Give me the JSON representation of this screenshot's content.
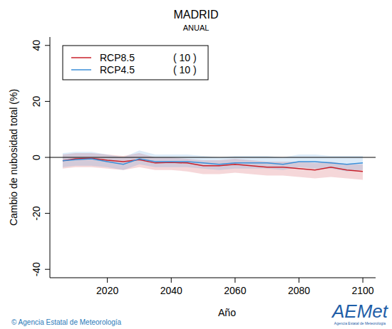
{
  "chart_data": {
    "type": "line",
    "title": "MADRID",
    "subtitle": "ANUAL",
    "x_label": "Año",
    "y_label": "Cambio de nubosidad total (%)",
    "x": [
      2006,
      2010,
      2015,
      2020,
      2025,
      2030,
      2035,
      2040,
      2045,
      2050,
      2055,
      2060,
      2065,
      2070,
      2075,
      2080,
      2085,
      2090,
      2095,
      2100
    ],
    "series": [
      {
        "name": "RCP8.5",
        "count_label": "( 10 )",
        "color": "#c8202a",
        "values": [
          -1.2,
          -0.5,
          -0.3,
          -1,
          -1.5,
          -0.8,
          -2,
          -1.8,
          -2,
          -3,
          -3,
          -2.5,
          -3,
          -3.5,
          -3.5,
          -4,
          -4.5,
          -3.5,
          -4.5,
          -5
        ],
        "lower": [
          -4,
          -3.5,
          -3.5,
          -4,
          -4.5,
          -3.5,
          -4.5,
          -4.5,
          -5,
          -6,
          -6,
          -5.5,
          -6,
          -6.5,
          -6.5,
          -7,
          -7.5,
          -7,
          -7.5,
          -8
        ],
        "upper": [
          1,
          1.5,
          1.5,
          1,
          0.5,
          1.5,
          0,
          0,
          -0.5,
          -1,
          -1,
          -0.5,
          -1,
          -1.5,
          -1.5,
          -1.5,
          -2,
          -1.5,
          -2.5,
          -2.5
        ]
      },
      {
        "name": "RCP4.5",
        "count_label": "( 10 )",
        "color": "#3b8fd8",
        "values": [
          -1.2,
          -0.8,
          -0.5,
          -1.5,
          -2.5,
          -0.5,
          -1.5,
          -1.5,
          -1.5,
          -2,
          -2.5,
          -2,
          -2,
          -2,
          -2.5,
          -1.5,
          -1.5,
          -2,
          -2.5,
          -2
        ],
        "lower": [
          -3.5,
          -3,
          -3,
          -3.5,
          -4.5,
          -2.5,
          -3.5,
          -3.5,
          -3.5,
          -4,
          -4.5,
          -4,
          -4,
          -4,
          -4.5,
          -3.5,
          -4,
          -4,
          -5,
          -4.5
        ],
        "upper": [
          1.5,
          2,
          2,
          1,
          0,
          2.5,
          1,
          1,
          1,
          0.5,
          0,
          0.5,
          0.5,
          0.5,
          0,
          1,
          1,
          0.5,
          0.5,
          0.5
        ]
      }
    ],
    "xlim": [
      2002,
      2104
    ],
    "xticks": [
      2020,
      2040,
      2060,
      2080,
      2100
    ],
    "ylim": [
      -43,
      43
    ],
    "yticks": [
      -40,
      -20,
      0,
      20,
      40
    ],
    "hline": 0,
    "legend": "upper-left",
    "grid": false,
    "footer": "© Agencia Estatal de Meteorología",
    "logo": "AEMet",
    "logo_subtitle": "Agencia Estatal de Meteorología"
  }
}
